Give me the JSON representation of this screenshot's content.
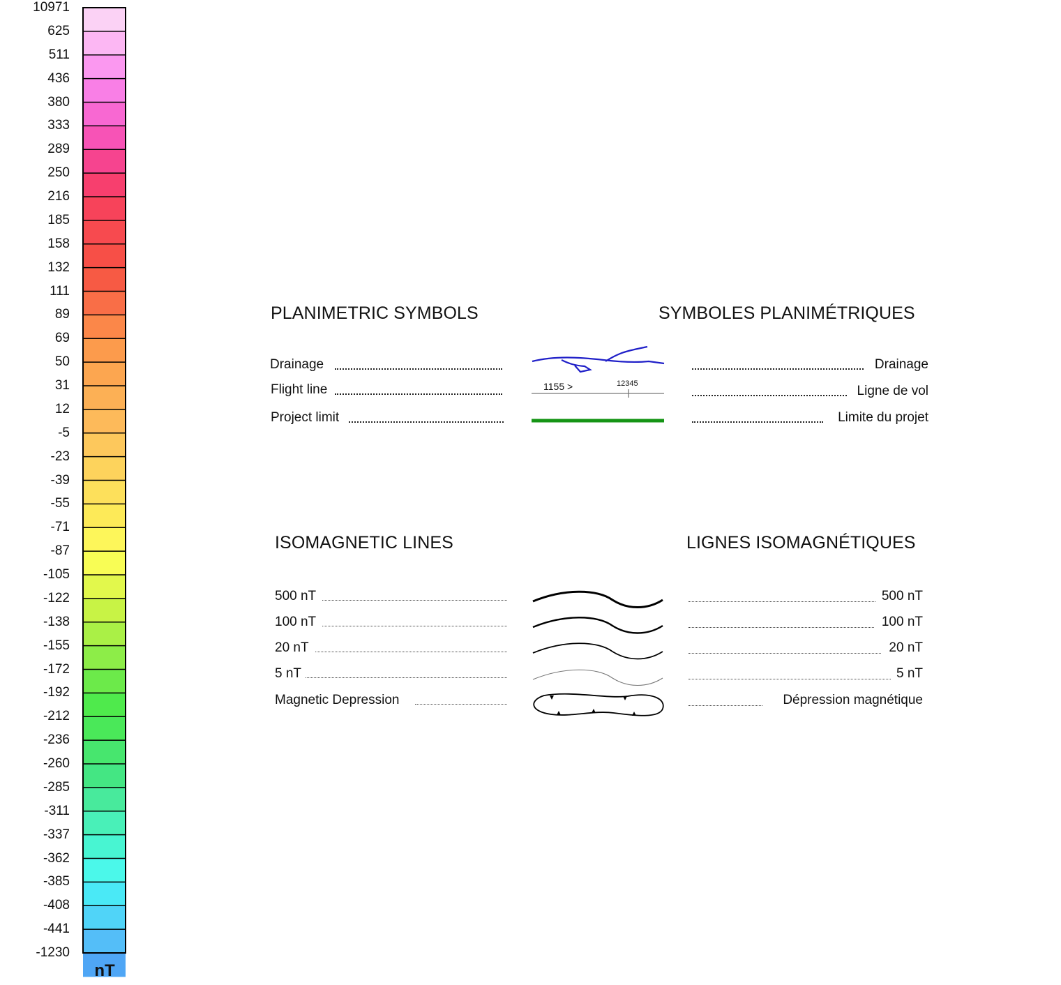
{
  "colorbar": {
    "unit": "nT",
    "labels": [
      "10971",
      "625",
      "511",
      "436",
      "380",
      "333",
      "289",
      "250",
      "216",
      "185",
      "158",
      "132",
      "111",
      "89",
      "69",
      "50",
      "31",
      "12",
      "-5",
      "-23",
      "-39",
      "-55",
      "-71",
      "-87",
      "-105",
      "-122",
      "-138",
      "-155",
      "-172",
      "-192",
      "-212",
      "-236",
      "-260",
      "-285",
      "-311",
      "-337",
      "-362",
      "-385",
      "-408",
      "-441",
      "-1230"
    ],
    "colors": [
      "#fbd2f5",
      "#fcb7f3",
      "#fb98f0",
      "#f97fe6",
      "#f868d2",
      "#f753b6",
      "#f6448f",
      "#f73f6e",
      "#f7435a",
      "#f74a4f",
      "#f74f47",
      "#f75a44",
      "#f96e47",
      "#fb8749",
      "#fc9b4c",
      "#fca650",
      "#fcb055",
      "#fdba5a",
      "#fdc85c",
      "#fdd35c",
      "#fde05b",
      "#fdea58",
      "#fdf65a",
      "#f8fd55",
      "#e2f84c",
      "#c8f345",
      "#aaf046",
      "#8ded48",
      "#6cea4a",
      "#4fea4c",
      "#4ae859",
      "#47e66e",
      "#44e683",
      "#48ea9c",
      "#49f0b8",
      "#48f5d2",
      "#4bf8ea",
      "#4ae9f6",
      "#50d4f8",
      "#54bef8",
      "#4fa6f5"
    ]
  },
  "planimetric": {
    "title_en": "PLANIMETRIC SYMBOLS",
    "title_fr": "SYMBOLES PLANIMÉTRIQUES",
    "items": [
      {
        "en": "Drainage",
        "fr": "Drainage"
      },
      {
        "en": "Flight line",
        "fr": "Ligne de vol"
      },
      {
        "en": "Project limit",
        "fr": "Limite du projet"
      }
    ],
    "flight_line_number": "1155 >",
    "fiducial_number": "12345",
    "drainage_color": "#1f1fc8",
    "project_limit_color": "#159415"
  },
  "isomagnetic": {
    "title_en": "ISOMAGNETIC LINES",
    "title_fr": "LIGNES ISOMAGNÉTIQUES",
    "items": [
      {
        "en": "500 nT",
        "fr": "500 nT"
      },
      {
        "en": "100 nT",
        "fr": "100 nT"
      },
      {
        "en": "20 nT",
        "fr": "20 nT"
      },
      {
        "en": "5 nT",
        "fr": "5 nT"
      },
      {
        "en": "Magnetic Depression",
        "fr": "Dépression magnétique"
      }
    ]
  }
}
